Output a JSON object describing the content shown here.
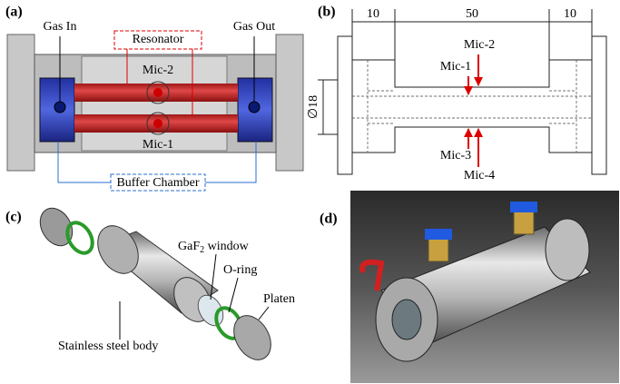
{
  "panel_a": {
    "label": "(a)",
    "gas_in": "Gas In",
    "gas_out": "Gas Out",
    "resonator": "Resonator",
    "mic_2": "Mic-2",
    "mic_1": "Mic-1",
    "buffer_chamber": "Buffer Chamber"
  },
  "panel_b": {
    "label": "(b)",
    "dim_left": "10",
    "dim_middle": "50",
    "dim_right": "10",
    "diameter": "∅18",
    "mic_2": "Mic-2",
    "mic_1": "Mic-1",
    "mic_3": "Mic-3",
    "mic_4": "Mic-4"
  },
  "panel_c": {
    "label": "(c)",
    "window": {
      "text": "GaF",
      "subscript": "2",
      "suffix": " window"
    },
    "o_ring": "O-ring",
    "platen": "Platen",
    "body": "Stainless steel body"
  },
  "panel_d": {
    "label": "(d)"
  }
}
